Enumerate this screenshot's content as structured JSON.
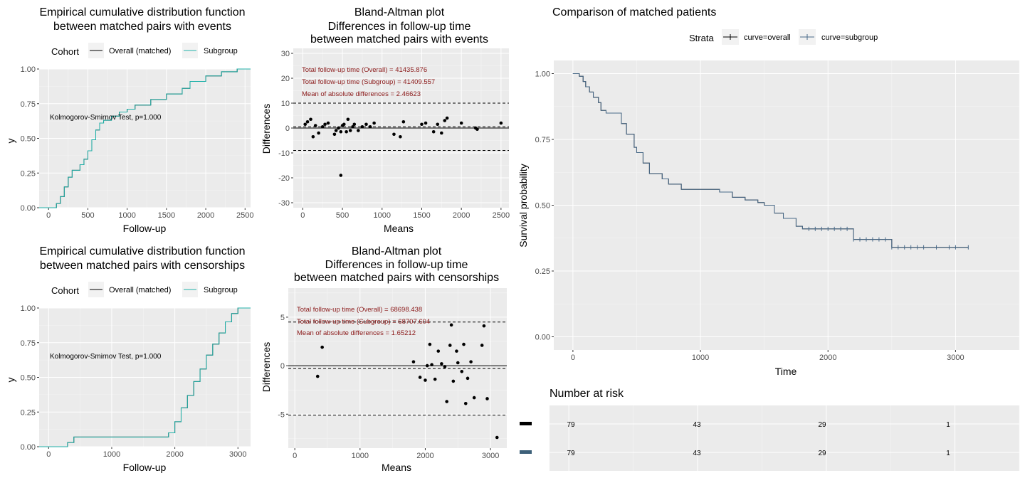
{
  "colors": {
    "panel_bg": "#ebebeb",
    "grid_major": "#ffffff",
    "overall": "#000000",
    "subgroup": "#20b2aa",
    "survival_line": "#4a6b8a",
    "annotation_red": "#8b1a1a",
    "risk_subgroup": "#3d6079"
  },
  "ecdf_events": {
    "title_line1": "Empirical cumulative distribution function",
    "title_line2": "between matched pairs with events",
    "legend_title": "Cohort",
    "legend_items": [
      "Overall (matched)",
      "Subgroup"
    ],
    "annotation": "Kolmogorov-Smirnov Test, p=1.000",
    "xlabel": "Follow-up",
    "ylabel": "y",
    "xticks": [
      "0",
      "500",
      "1000",
      "1500",
      "2000",
      "2500"
    ],
    "yticks": [
      "0.00",
      "0.25",
      "0.50",
      "0.75",
      "1.00"
    ]
  },
  "ecdf_censor": {
    "title_line1": "Empirical cumulative distribution function",
    "title_line2": "between matched pairs with censorships",
    "legend_title": "Cohort",
    "legend_items": [
      "Overall (matched)",
      "Subgroup"
    ],
    "annotation": "Kolmogorov-Smirnov Test, p=1.000",
    "xlabel": "Follow-up",
    "ylabel": "y",
    "xticks": [
      "0",
      "1000",
      "2000",
      "3000"
    ],
    "yticks": [
      "0.00",
      "0.25",
      "0.50",
      "0.75",
      "1.00"
    ]
  },
  "ba_events": {
    "title_line1": "Bland-Altman plot",
    "title_line2": "Differences in follow-up time",
    "title_line3": "between matched pairs with events",
    "annot1": "Total follow-up time (Overall) = 41435.876",
    "annot2": "Total follow-up time (Subgroup) = 41409.557",
    "annot3": "Mean of absolute differences = 2.46623",
    "xlabel": "Means",
    "ylabel": "Differences",
    "xticks": [
      "0",
      "500",
      "1000",
      "1500",
      "2000",
      "2500"
    ],
    "yticks": [
      "-30",
      "-20",
      "-10",
      "0",
      "10",
      "20",
      "30"
    ]
  },
  "ba_censor": {
    "title_line1": "Bland-Altman plot",
    "title_line2": "Differences in follow-up time",
    "title_line3": "between matched pairs with censorships",
    "annot1": "Total follow-up time (Overall) = 68698.438",
    "annot2": "Total follow-up time (Subgroup) = 68707.604",
    "annot3": "Mean of absolute differences = 1.65212",
    "xlabel": "Means",
    "ylabel": "Differences",
    "xticks": [
      "0",
      "1000",
      "2000",
      "3000"
    ],
    "yticks": [
      "-5",
      "0",
      "5"
    ]
  },
  "km": {
    "title": "Comparison of matched patients",
    "legend_title": "Strata",
    "legend_items": [
      "curve=overall",
      "curve=subgroup"
    ],
    "xlabel": "Time",
    "ylabel": "Survival probability",
    "xticks": [
      "0",
      "1000",
      "2000",
      "3000"
    ],
    "yticks": [
      "0.00",
      "0.25",
      "0.50",
      "0.75",
      "1.00"
    ]
  },
  "risk": {
    "title": "Number at risk",
    "rows": [
      {
        "strata": "overall",
        "values": [
          "79",
          "43",
          "29",
          "1"
        ]
      },
      {
        "strata": "subgroup",
        "values": [
          "79",
          "43",
          "29",
          "1"
        ]
      }
    ]
  },
  "chart_data": [
    {
      "type": "line",
      "id": "ecdf_events",
      "title": "Empirical cumulative distribution function between matched pairs with events",
      "xlabel": "Follow-up",
      "ylabel": "y",
      "xlim": [
        -120,
        2570
      ],
      "ylim": [
        0,
        1
      ],
      "series": [
        {
          "name": "Overall (matched)",
          "x": [
            0,
            100,
            150,
            200,
            250,
            300,
            400,
            450,
            500,
            550,
            600,
            650,
            700,
            800,
            900,
            1000,
            1100,
            1300,
            1500,
            1700,
            1800,
            2000,
            2200,
            2400,
            2500
          ],
          "y": [
            0,
            0.03,
            0.08,
            0.15,
            0.22,
            0.27,
            0.31,
            0.35,
            0.41,
            0.49,
            0.56,
            0.61,
            0.63,
            0.66,
            0.69,
            0.71,
            0.74,
            0.78,
            0.82,
            0.86,
            0.91,
            0.95,
            0.98,
            1.0,
            1.0
          ]
        },
        {
          "name": "Subgroup",
          "x": [
            0,
            100,
            150,
            200,
            250,
            300,
            400,
            450,
            500,
            550,
            600,
            650,
            700,
            800,
            900,
            1000,
            1100,
            1300,
            1500,
            1700,
            1800,
            2000,
            2200,
            2400,
            2500
          ],
          "y": [
            0,
            0.03,
            0.08,
            0.15,
            0.22,
            0.27,
            0.31,
            0.35,
            0.41,
            0.49,
            0.56,
            0.61,
            0.63,
            0.66,
            0.69,
            0.71,
            0.74,
            0.78,
            0.82,
            0.86,
            0.91,
            0.95,
            0.98,
            1.0,
            1.0
          ]
        }
      ]
    },
    {
      "type": "line",
      "id": "ecdf_censor",
      "title": "Empirical cumulative distribution function between matched pairs with censorships",
      "xlabel": "Follow-up",
      "ylabel": "y",
      "xlim": [
        -150,
        3200
      ],
      "ylim": [
        0,
        1
      ],
      "series": [
        {
          "name": "Overall (matched)",
          "x": [
            0,
            300,
            400,
            1800,
            1900,
            2000,
            2100,
            2200,
            2300,
            2400,
            2500,
            2600,
            2700,
            2800,
            2900,
            3000,
            3100
          ],
          "y": [
            0,
            0.03,
            0.07,
            0.07,
            0.1,
            0.18,
            0.28,
            0.37,
            0.47,
            0.56,
            0.66,
            0.74,
            0.82,
            0.9,
            0.96,
            1.0,
            1.0
          ]
        },
        {
          "name": "Subgroup",
          "x": [
            0,
            300,
            400,
            1800,
            1900,
            2000,
            2100,
            2200,
            2300,
            2400,
            2500,
            2600,
            2700,
            2800,
            2900,
            3000,
            3100
          ],
          "y": [
            0,
            0.03,
            0.07,
            0.07,
            0.1,
            0.18,
            0.28,
            0.37,
            0.47,
            0.56,
            0.66,
            0.74,
            0.82,
            0.9,
            0.96,
            1.0,
            1.0
          ]
        }
      ]
    },
    {
      "type": "scatter",
      "id": "ba_events",
      "title": "Bland-Altman plot Differences in follow-up time between matched pairs with events",
      "xlabel": "Means",
      "ylabel": "Differences",
      "xlim": [
        -120,
        2600
      ],
      "ylim": [
        -32,
        32
      ],
      "hlines": [
        10,
        0.5,
        0,
        -9
      ],
      "x": [
        30,
        60,
        100,
        130,
        160,
        200,
        250,
        280,
        320,
        400,
        420,
        450,
        480,
        500,
        520,
        550,
        570,
        600,
        630,
        650,
        700,
        750,
        800,
        850,
        900,
        1150,
        1230,
        1270,
        1500,
        1550,
        1650,
        1700,
        1750,
        1790,
        1820,
        2000,
        2180,
        2200,
        2500,
        480
      ],
      "y": [
        1.5,
        2.5,
        3.5,
        -3.5,
        1,
        -2,
        0.5,
        1.5,
        2,
        -2.5,
        -1,
        0,
        -1.5,
        1,
        1.5,
        -1.5,
        3.5,
        -1,
        0.5,
        1.5,
        -1,
        0.5,
        1.5,
        0.5,
        2,
        -2.5,
        -3.5,
        2.5,
        1.5,
        2,
        -1.5,
        1.5,
        -2,
        3,
        4,
        2,
        0,
        -0.5,
        2,
        -19
      ]
    },
    {
      "type": "scatter",
      "id": "ba_censor",
      "title": "Bland-Altman plot Differences in follow-up time between matched pairs with censorships",
      "xlabel": "Means",
      "ylabel": "Differences",
      "xlim": [
        -100,
        3250
      ],
      "ylim": [
        -8.5,
        8
      ],
      "hlines": [
        4.5,
        0,
        -0.3,
        -5.1
      ],
      "x": [
        350,
        420,
        1820,
        1920,
        2000,
        2030,
        2070,
        2100,
        2150,
        2200,
        2250,
        2300,
        2330,
        2380,
        2400,
        2430,
        2480,
        2500,
        2560,
        2590,
        2620,
        2650,
        2700,
        2750,
        2870,
        2900,
        2950,
        3100
      ],
      "y": [
        -1.1,
        1.9,
        0.4,
        -1.2,
        -1.5,
        0,
        2.2,
        0.1,
        -1.4,
        1.5,
        0.2,
        -0.1,
        -3.7,
        2.1,
        4.2,
        -1.6,
        1.5,
        0.3,
        -0.6,
        2.2,
        -3.9,
        -1.3,
        0.4,
        -3.3,
        2.1,
        4.1,
        -3.4,
        -7.4
      ]
    },
    {
      "type": "line",
      "id": "km",
      "title": "Comparison of matched patients",
      "xlabel": "Time",
      "ylabel": "Survival probability",
      "xlim": [
        -150,
        3500
      ],
      "ylim": [
        -0.05,
        1.05
      ],
      "series": [
        {
          "name": "curve=overall",
          "x": [
            0,
            50,
            80,
            100,
            130,
            160,
            200,
            220,
            260,
            300,
            380,
            420,
            480,
            500,
            550,
            600,
            700,
            750,
            850,
            1000,
            1150,
            1250,
            1350,
            1450,
            1500,
            1580,
            1650,
            1750,
            1800,
            1900,
            2000,
            2200,
            2500,
            3100
          ],
          "y": [
            1.0,
            0.99,
            0.97,
            0.95,
            0.93,
            0.91,
            0.89,
            0.86,
            0.85,
            0.85,
            0.81,
            0.77,
            0.72,
            0.7,
            0.66,
            0.62,
            0.6,
            0.58,
            0.56,
            0.56,
            0.55,
            0.53,
            0.52,
            0.51,
            0.5,
            0.47,
            0.45,
            0.42,
            0.41,
            0.41,
            0.41,
            0.37,
            0.34,
            0.34
          ]
        },
        {
          "name": "curve=subgroup",
          "x": [
            0,
            50,
            80,
            100,
            130,
            160,
            200,
            220,
            260,
            300,
            380,
            420,
            480,
            500,
            550,
            600,
            700,
            750,
            850,
            1000,
            1150,
            1250,
            1350,
            1450,
            1500,
            1580,
            1650,
            1750,
            1800,
            1900,
            2000,
            2200,
            2500,
            3100
          ],
          "y": [
            1.0,
            0.99,
            0.97,
            0.95,
            0.93,
            0.91,
            0.89,
            0.86,
            0.85,
            0.85,
            0.81,
            0.77,
            0.72,
            0.7,
            0.66,
            0.62,
            0.6,
            0.58,
            0.56,
            0.56,
            0.55,
            0.53,
            0.52,
            0.51,
            0.5,
            0.47,
            0.45,
            0.42,
            0.41,
            0.41,
            0.41,
            0.37,
            0.34,
            0.34
          ]
        }
      ],
      "censor_times": [
        1850,
        1900,
        1950,
        2000,
        2050,
        2100,
        2150,
        2200,
        2250,
        2300,
        2350,
        2400,
        2450,
        2500,
        2550,
        2600,
        2650,
        2700,
        2750,
        2850,
        2950,
        3000,
        3100
      ]
    },
    {
      "type": "table",
      "id": "risk",
      "title": "Number at risk",
      "times": [
        0,
        1000,
        2000,
        3000
      ],
      "rows": [
        {
          "strata": "overall",
          "values": [
            79,
            43,
            29,
            1
          ]
        },
        {
          "strata": "subgroup",
          "values": [
            79,
            43,
            29,
            1
          ]
        }
      ]
    }
  ]
}
